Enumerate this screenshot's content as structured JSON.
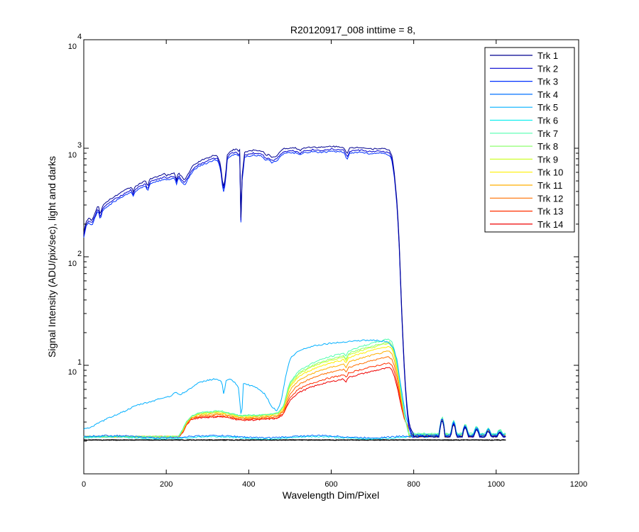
{
  "chart_data": {
    "type": "line",
    "title": "R20120917_008 inttime = 8,",
    "xlabel": "Wavelength Dim/Pixel",
    "ylabel": "Signal Intensity (ADU/pix/sec), light and darks",
    "xlim": [
      0,
      1200
    ],
    "ylim": [
      1,
      10000
    ],
    "yscale": "log",
    "grid": false,
    "legend_position": "top-right",
    "x_ticks": [
      "0",
      "200",
      "400",
      "600",
      "800",
      "1000",
      "1200"
    ],
    "y_ticks": [
      {
        "base": "10",
        "exp": "1"
      },
      {
        "base": "10",
        "exp": "2"
      },
      {
        "base": "10",
        "exp": "3"
      },
      {
        "base": "10",
        "exp": "4"
      }
    ],
    "dark_level": 2.05,
    "series": [
      {
        "name": "Trk 1",
        "color": "#00008F",
        "profile": "bright",
        "level": 1.0,
        "tail": 2.2
      },
      {
        "name": "Trk 2",
        "color": "#0000CF",
        "profile": "bright",
        "level": 0.94,
        "tail": 2.2
      },
      {
        "name": "Trk 3",
        "color": "#0030FF",
        "profile": "bright",
        "level": 0.9,
        "tail": 2.25
      },
      {
        "name": "Trk 4",
        "color": "#0070FF",
        "profile": "dark",
        "level": 2.2,
        "tail": 2.2
      },
      {
        "name": "Trk 5",
        "color": "#00AFFF",
        "profile": "mid",
        "level": 1.0,
        "tail": 2.3
      },
      {
        "name": "Trk 6",
        "color": "#10EFEF",
        "profile": "dark",
        "level": 2.15,
        "tail": 2.2
      },
      {
        "name": "Trk 7",
        "color": "#50FFAF",
        "profile": "rise",
        "level": 17.5,
        "tail": 2.35
      },
      {
        "name": "Trk 8",
        "color": "#8FFF70",
        "profile": "rise",
        "level": 16.5,
        "tail": 2.3
      },
      {
        "name": "Trk 9",
        "color": "#CFFF30",
        "profile": "rise",
        "level": 16.0,
        "tail": 2.3
      },
      {
        "name": "Trk 10",
        "color": "#FFEF00",
        "profile": "rise",
        "level": 15.0,
        "tail": 2.25
      },
      {
        "name": "Trk 11",
        "color": "#FFAF00",
        "profile": "rise",
        "level": 13.5,
        "tail": 2.25
      },
      {
        "name": "Trk 12",
        "color": "#FF7000",
        "profile": "rise",
        "level": 12.0,
        "tail": 2.2
      },
      {
        "name": "Trk 13",
        "color": "#FF3000",
        "profile": "rise",
        "level": 10.5,
        "tail": 2.2
      },
      {
        "name": "Trk 14",
        "color": "#EF0000",
        "profile": "rise",
        "level": 9.5,
        "tail": 2.2
      }
    ]
  }
}
